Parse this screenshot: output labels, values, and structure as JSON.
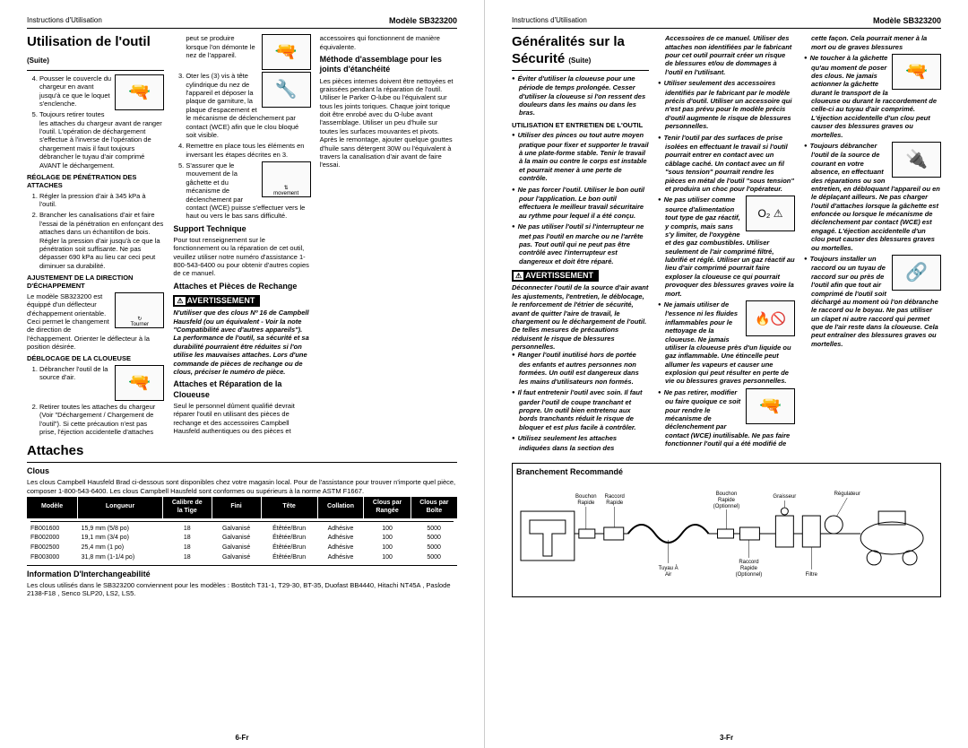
{
  "header": {
    "instr": "Instructions d'Utilisation",
    "model": "Modèle SB323200"
  },
  "page_left_num": "6-Fr",
  "page_right_num": "3-Fr",
  "left": {
    "h1": "Utilisation de l'outil",
    "h1_suite": "(Suite)",
    "step4": "Pousser le couvercle du chargeur en avant jusqu'à ce que le loquet s'enclenche.",
    "step5": "Toujours retirer toutes les attaches du chargeur avant de ranger l'outil. L'opération de déchargement s'effectue à l'inverse de l'opération de chargement mais il faut toujours débrancher le tuyau d'air comprimé AVANT le déchargement.",
    "reglage_h": "RÉGLAGE DE PÉNÉTRATION DES ATTACHES",
    "reg1": "Régler la pression d'air à 345 kPa à l'outil.",
    "reg2": "Brancher les canalisations d'air et faire l'essai de la pénétration en enfonçant des attaches dans un échantillon de bois. Régler la pression d'air jusqu'à ce que la pénétration soit suffisante. Ne pas dépasser 690 kPa au lieu car ceci peut diminuer sa durabilité.",
    "ajust_h": "AJUSTEMENT DE LA DIRECTION D'ÉCHAPPEMENT",
    "ajust_p": "Le modèle SB323200 est équippé d'un déflecteur d'échappement orientable. Ceci permet le changement de direction de l'échappement. Orienter le déflecteur à la position désirée.",
    "ajust_label": "Tourner",
    "deblocage_h": "DÉBLOCAGE DE LA CLOUEUSE",
    "d1": "Débrancher l'outil de la source d'air.",
    "d2": "Retirer toutes les attaches du chargeur (Voir \"Déchargement / Chargement de l'outil\"). Si cette précaution n'est pas prise, l'éjection accidentelle d'attaches peut se produire lorsque l'on démonte le nez de l'appareil.",
    "d3": "Oter les (3) vis à tête cylindrique du nez de l'appareil et déposer la plaque de garniture, la plaque d'espacement et le mécanisme de déclenchement par contact (WCE) afin que le clou bloqué soit visible.",
    "d4": "Remettre en place tous les éléments en inversant les étapes décrites en 3.",
    "d5": "S'assurer que le mouvement de la gâchette et du mécanisme de déclenchement par contact (WCE) puisse s'effectuer vers le haut ou vers le bas sans difficulté.",
    "d5_label": "movement",
    "support_h": "Support Technique",
    "support_p": "Pour tout renseignement sur le fonctionnement ou la réparation de cet outil, veuillez utiliser notre numéro d'assistance 1-800-543-6400 ou pour obtenir d'autres copies de ce manuel.",
    "attaches_h": "Attaches et Pièces de Rechange",
    "avert": "AVERTISSEMENT",
    "avert_p": "N'utiliser que des clous Nº 16 de Campbell Hausfeld (ou un équivalent - Voir la note \"Compatibilité avec d'autres appareils\"). La performance de l'outil, sa sécurité et sa durabilité pourraient être réduites si l'on utilise les mauvaises attaches. Lors d'une commande de pièces de rechange ou de clous, préciser le numéro de pièce.",
    "rep_h": "Attaches et Réparation de la Cloueuse",
    "rep_p": "Seul le personnel dûment qualifié devrait réparer l'outil en utilisant des pièces de rechange et des accessoires Campbell Hausfeld authentiques ou des pièces et accessoires qui fonctionnent de manière équivalente.",
    "meth_h": "Méthode d'assemblage pour les joints d'étanchéité",
    "meth_p": "Les pièces internes doivent être nettoyées et graissées pendant la réparation de l'outil. Utiliser le Parker O-lube ou l'équivalent sur tous les joints toriques. Chaque joint torique doit être enrobé avec du O-lube avant l'assemblage. Utiliser un peu d'huile sur toutes les surfaces mouvantes et pivots. Après le remontage, ajouter quelque gouttes d'huile sans détergent 30W ou l'équivalent à travers la canalisation d'air avant de faire l'essai."
  },
  "attaches": {
    "h1": "Attaches",
    "clous_h": "Clous",
    "clous_p": "Les clous Campbell Hausfeld Brad ci-dessous sont disponibles chez votre magasin local. Pour de l'assistance pour trouver n'importe quel pièce, composer 1-800-543-6400. Les clous Campbell Hausfeld sont conformes ou supérieurs à la norme ASTM F1667.",
    "cols": [
      "Modèle",
      "Longueur",
      "Calibre de la Tige",
      "Fini",
      "Tête",
      "Collation",
      "Clous par Rangée",
      "Clous par Boîte"
    ],
    "rows": [
      [
        "FB001600",
        "15,9 mm (5/8 po)",
        "18",
        "Galvanisé",
        "Étêtée/Brun",
        "Adhésive",
        "100",
        "5000"
      ],
      [
        "FB002000",
        "19,1 mm (3/4 po)",
        "18",
        "Galvanisé",
        "Étêtée/Brun",
        "Adhésive",
        "100",
        "5000"
      ],
      [
        "FB002500",
        "25,4 mm (1 po)",
        "18",
        "Galvanisé",
        "Étêtée/Brun",
        "Adhésive",
        "100",
        "5000"
      ],
      [
        "FB003000",
        "31,8 mm (1-1/4 po)",
        "18",
        "Galvanisé",
        "Étêtée/Brun",
        "Adhésive",
        "100",
        "5000"
      ]
    ],
    "info_h": "Information D'Interchangeabilité",
    "info_p": "Les clous utilisés dans le SB323200 conviennent pour les modèles : Bostitch T31-1, T29-30, BT-35, Duofast BB4440, Hitachi NT45A , Paslode 2138-F18 , Senco SLP20, LS2, LS5."
  },
  "right": {
    "h1": "Généralités sur la Sécurité",
    "h1_suite": "(Suite)",
    "b1": "Éviter d'utiliser la cloueuse pour une période de temps prolongée. Cesser d'utiliser la cloueuse si l'on ressent des douleurs dans les mains ou dans les bras.",
    "util_h": "UTILISATION ET ENTRETIEN DE L'OUTIL",
    "u1": "Utiliser des pinces ou tout autre moyen pratique pour fixer et supporter le travail à une plate-forme stable. Tenir le travail à la main ou contre le corps est instable et pourrait mener à une perte de contrôle.",
    "u2": "Ne pas forcer l'outil. Utiliser le bon outil pour l'application. Le bon outil effectuera le meilleur travail sécuritaire au rythme pour lequel il a été conçu.",
    "u3": "Ne pas utiliser l'outil si l'interrupteur ne met pas l'outil en marche ou ne l'arrête pas. Tout outil qui ne peut pas être contrôlé avec l'interrupteur est dangereux et doit être réparé.",
    "avert": "AVERTISSEMENT",
    "avert_p": "Déconnecter l'outil de la source d'air avant les ajustements, l'entretien, le déblocage, le renforcement de l'étrier de sécurité, avant de quitter l'aire de travail, le chargement ou le déchargement de l'outil. De telles mesures de précautions réduisent le risque de blessures personnelles.",
    "u4": "Ranger l'outil inutilisé hors de portée des enfants et autres personnes non formées. Un outil est dangereux dans les mains d'utilisateurs non formés.",
    "u5": "Il faut entretenir l'outil avec soin. Il faut garder l'outil de coupe tranchant et propre. Un outil bien entretenu aux bords tranchants réduit le risque de bloquer et est plus facile à contrôler.",
    "u6": "Utilisez seulement les attaches indiquées dans la section des Accessoires de ce manuel. Utiliser des attaches non identifiées par le fabricant pour cet outil pourrait créer un risque de blessures et/ou de dommages à l'outil en l'utilisant.",
    "u7": "Utiliser seulement des accessoires identifiés par le fabricant par le modèle précis d'outil. Utiliser un accessoire qui n'est pas prévu pour le modèle précis d'outil augmente le risque de blessures personnelles.",
    "u8": "Tenir l'outil par des surfaces de prise isolées en effectuant le travail si l'outil pourrait entrer en contact avec un câblage caché. Un contact avec un fil \"sous tension\" pourrait rendre les pièces en métal de l'outil \"sous tension\" et produira un choc pour l'opérateur.",
    "u9": "Ne pas utiliser comme source d'alimentation tout type de gaz réactif, y compris, mais sans s'y limiter, de l'oxygène et des gaz combustibles. Utiliser seulement de l'air comprimé filtré, lubrifié et réglé. Utiliser un gaz réactif au lieu d'air comprimé pourrait faire exploser la cloueuse ce qui pourrait provoquer des blessures graves voire la mort.",
    "u10": "Ne jamais utiliser de l'essence ni les fluides inflammables pour le nettoyage de la cloueuse. Ne jamais utiliser la cloueuse près d'un liquide ou gaz inflammable. Une étincelle peut allumer les vapeurs et causer une explosion qui peut résulter en perte de vie ou blessures graves personnelles.",
    "u11": "Ne pas retirer, modifier ou faire quoique ce soit pour rendre le mécanisme de déclenchement",
    "u11b": "par contact (WCE) inutilisable. Ne pas faire fonctionner l'outil qui a été modifié de cette façon. Cela pourrait mener à la mort ou de graves blessures",
    "u12": "Ne toucher à la gâchette qu'au moment de poser des clous. Ne jamais actionner la gâchette durant le transport de la cloueuse ou durant le raccordement de celle-ci au tuyau d'air comprimé. L'éjection accidentelle d'un clou peut causer des blessures graves ou mortelles.",
    "u13": "Toujours débrancher l'outil de la source de courant en votre absence, en effectuant des réparations ou son entretien, en débloquant l'appareil ou en le déplaçant ailleurs. Ne pas charger l'outil d'attaches lorsque la gâchette est enfoncée ou lorsque le mécanisme de déclenchement par contact (WCE) est engagé. L'éjection accidentelle d'un clou peut causer des blessures graves ou mortelles.",
    "u14": "Toujours installer un raccord ou un tuyau de raccord sur ou près de l'outil afin que tout air comprimé de l'outil soit déchargé au moment où l'on débranche le raccord ou le boyau. Ne pas utiliser un clapet ni autre raccord qui permet que de l'air reste dans la cloueuse. Cela peut entraîner des blessures graves ou mortelles."
  },
  "branch": {
    "ttl": "Branchement Recommandé",
    "labels": {
      "bouchon_rapide": "Bouchon Rapide",
      "raccord_rapide": "Raccord Rapide",
      "bouchon_rapide_opt": "Bouchon Rapide (Optionnel)",
      "raccord_rapide_opt": "Raccord Rapide (Optionnel)",
      "tuyau": "Tuyau À Air",
      "filtre": "Filtre",
      "graisseur": "Graisseur",
      "regulateur": "Régulateur"
    }
  }
}
